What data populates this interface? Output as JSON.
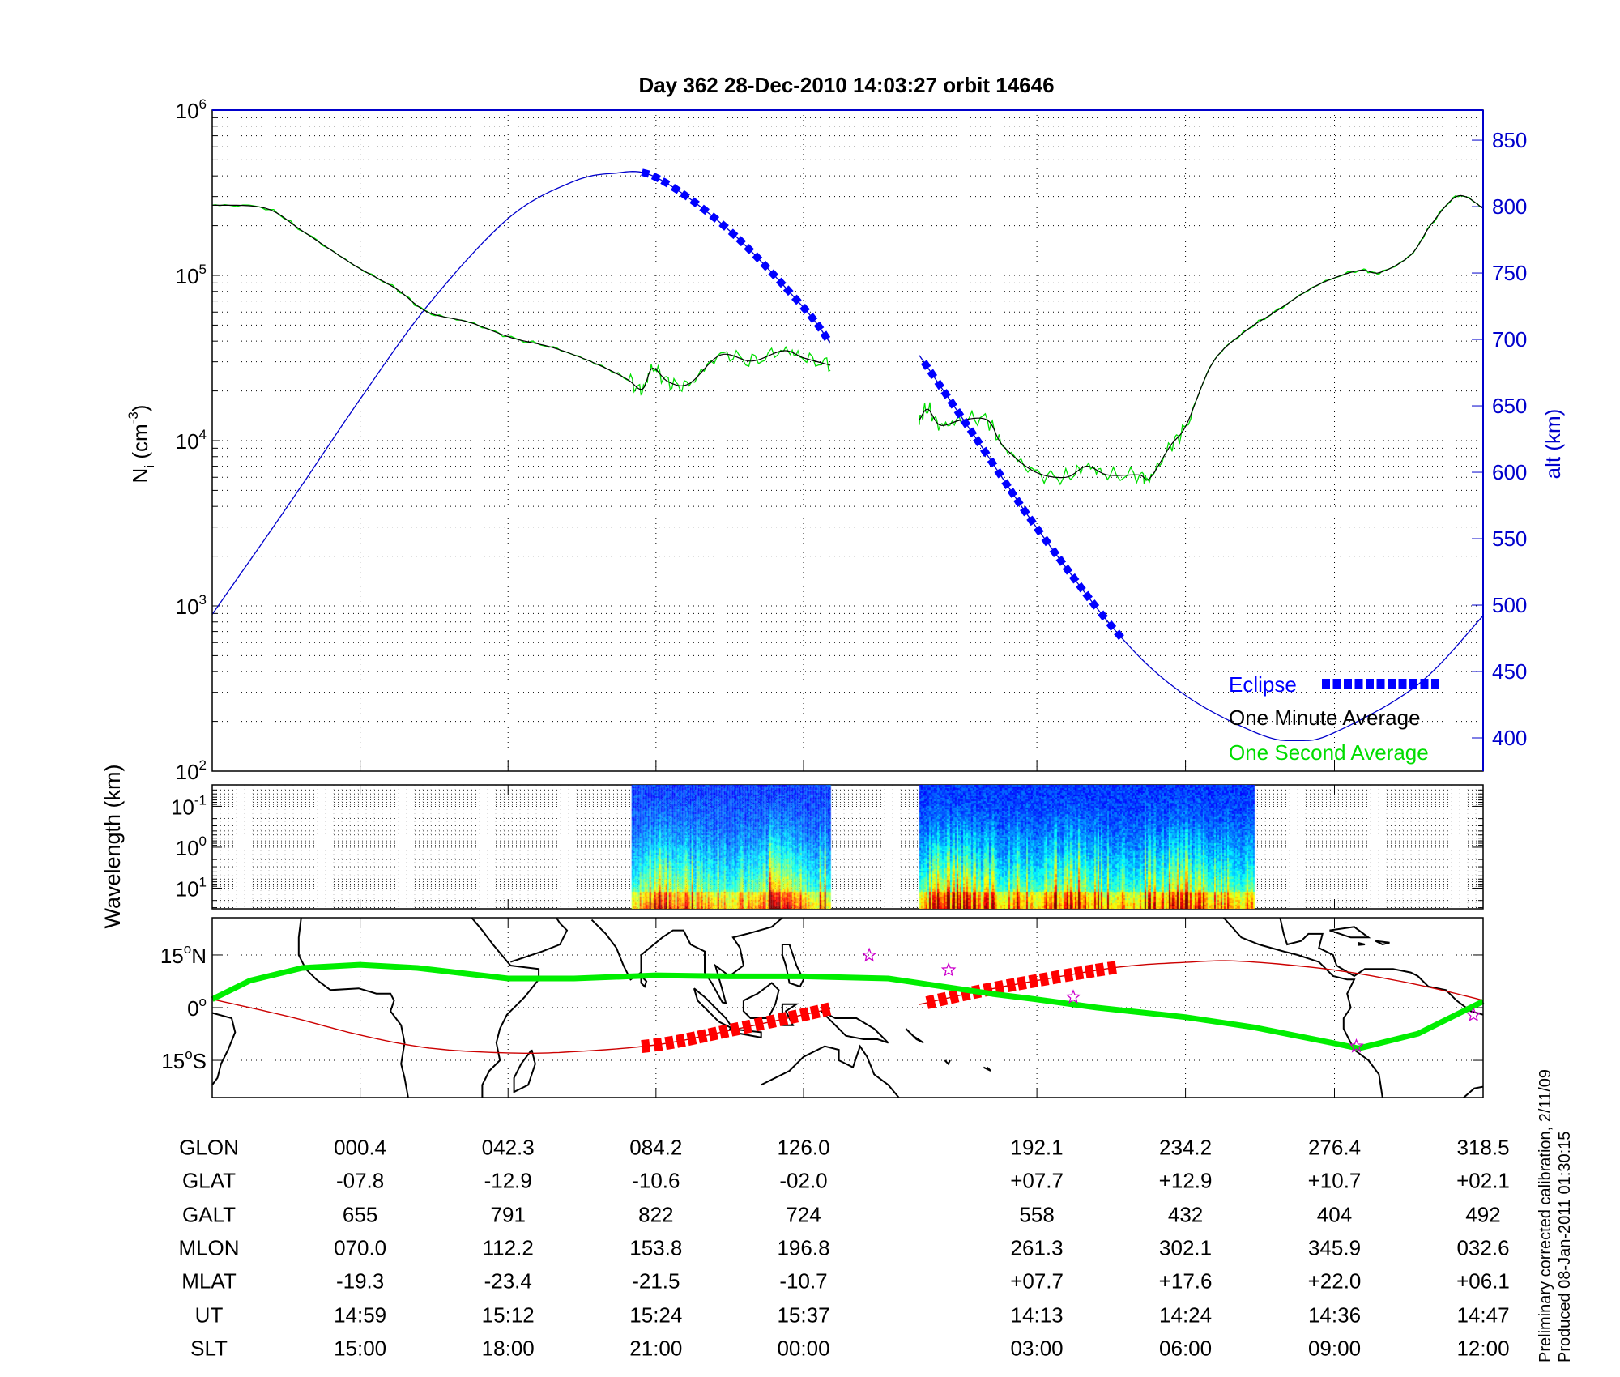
{
  "title": "Day 362  28-Dec-2010 14:03:27   orbit 14646",
  "side_note": {
    "line1": "Preliminary corrected calibration, 2/11/09",
    "line2": "Produced 08-Jan-2011 01:30:15"
  },
  "colors": {
    "altitude": "#0000cc",
    "eclipse": "#0000ff",
    "one_minute": "#000000",
    "one_second": "#00dd00",
    "ground_track": "#cc0000",
    "eclipse_track": "#ff0000",
    "dip_equator": "#00ee00",
    "stars": "#cc00cc"
  },
  "chart_data": [
    {
      "type": "line",
      "panel": "density",
      "ylabel": "N_i (cm^-3)",
      "ylabel_main": "N",
      "ylabel_sub": "i",
      "ylabel_unit": " (cm",
      "ylabel_exp": "-3",
      "ylabel_close": ")",
      "yscale": "log",
      "ylim": [
        100,
        1000000
      ],
      "y_ticks": [
        {
          "base": "10",
          "exp": "2",
          "value": 100
        },
        {
          "base": "10",
          "exp": "3",
          "value": 1000
        },
        {
          "base": "10",
          "exp": "4",
          "value": 10000
        },
        {
          "base": "10",
          "exp": "5",
          "value": 100000
        },
        {
          "base": "10",
          "exp": "6",
          "value": 1000000
        }
      ],
      "y2label": "alt (km)",
      "y2lim": [
        375,
        872.6
      ],
      "y2_ticks": [
        "400",
        "450",
        "500",
        "550",
        "600",
        "650",
        "700",
        "750",
        "800",
        "850"
      ],
      "xlim_glon": [
        -41.5,
        318.5
      ],
      "x_ticks_glon": [
        0.4,
        42.3,
        84.2,
        126.0,
        192.1,
        234.2,
        276.4,
        318.5
      ],
      "grid": true,
      "legend_placement": "bottom-right",
      "legend": {
        "eclipse": "Eclipse",
        "one_minute": "One Minute Average",
        "one_second": "One Second Average"
      },
      "series": [
        {
          "name": "One Minute Average",
          "segments": [
            [
              [
                -41.5,
                266000
              ],
              [
                -26.4,
                255000
              ],
              [
                -16.0,
                186000
              ],
              [
                -1.2,
                115000
              ],
              [
                10.6,
                83000
              ],
              [
                19.5,
                60000
              ],
              [
                31.4,
                52000
              ],
              [
                43.2,
                42000
              ],
              [
                55.1,
                36500
              ],
              [
                66.9,
                29400
              ],
              [
                75.8,
                23700
              ],
              [
                80.3,
                20500
              ],
              [
                83.2,
                27400
              ],
              [
                87.7,
                22700
              ],
              [
                93.6,
                22100
              ],
              [
                102.5,
                33000
              ],
              [
                111.4,
                30300
              ],
              [
                120.3,
                35000
              ],
              [
                126.2,
                31600
              ],
              [
                133.6,
                28600
              ]
            ],
            [
              [
                158.8,
                13300
              ],
              [
                161.2,
                15500
              ],
              [
                164.7,
                12400
              ],
              [
                170.7,
                13300
              ],
              [
                178.1,
                13300
              ],
              [
                182.5,
                9300
              ],
              [
                191.4,
                6500
              ],
              [
                200.3,
                6000
              ],
              [
                206.2,
                7000
              ],
              [
                212.1,
                6200
              ],
              [
                221.0,
                6200
              ],
              [
                224.0,
                5900
              ],
              [
                229.9,
                9300
              ],
              [
                234.4,
                12400
              ],
              [
                241.8,
                29400
              ],
              [
                250.6,
                45000
              ],
              [
                259.5,
                60000
              ],
              [
                271.4,
                87000
              ],
              [
                283.2,
                107000
              ],
              [
                289.2,
                104000
              ],
              [
                298.0,
                133000
              ],
              [
                303.9,
                205000
              ],
              [
                311.4,
                303000
              ],
              [
                318.5,
                255000
              ]
            ]
          ]
        },
        {
          "name": "One Second Average",
          "segments": "one-minute average with 1 s fluctuations"
        },
        {
          "name": "alt (km)",
          "axis": "right",
          "segments": [
            [
              [
                -41.5,
                493
              ],
              [
                -20,
                575
              ],
              [
                0.4,
                655
              ],
              [
                20,
                727
              ],
              [
                42.3,
                791
              ],
              [
                60,
                818
              ],
              [
                72,
                825
              ],
              [
                84.2,
                822
              ],
              [
                105,
                782
              ],
              [
                126,
                724
              ],
              [
                133.6,
                697
              ]
            ],
            [
              [
                158.8,
                688
              ],
              [
                175,
                625
              ],
              [
                192.1,
                558
              ],
              [
                215.9,
                476
              ],
              [
                234.2,
                432
              ],
              [
                255,
                403
              ],
              [
                266,
                398
              ],
              [
                276.4,
                404
              ],
              [
                300,
                440
              ],
              [
                318.5,
                492
              ]
            ]
          ]
        }
      ],
      "eclipse_glon_ranges": [
        [
          77.9,
          134.2
        ],
        [
          158.8,
          215.9
        ]
      ]
    },
    {
      "type": "heatmap",
      "panel": "spectrogram",
      "ylabel": "Wavelength (km)",
      "yscale": "log",
      "ylim": [
        0.03,
        32
      ],
      "y_ticks": [
        {
          "base": "10",
          "exp": "-1"
        },
        {
          "base": "10",
          "exp": "0"
        },
        {
          "base": "10",
          "exp": "1"
        }
      ],
      "data_glon_ranges": [
        [
          77.3,
          133.6
        ],
        [
          158.8,
          253.6
        ]
      ],
      "colormap": "jet"
    },
    {
      "type": "map",
      "panel": "ground-track",
      "ylim": [
        -25.6,
        25.6
      ],
      "y_ticks": [
        {
          "label": "15°N",
          "deg": "15",
          "hemi": "N",
          "value": 15
        },
        {
          "label": "0°",
          "deg": "0",
          "hemi": "",
          "value": 0
        },
        {
          "label": "15°S",
          "deg": "15",
          "hemi": "S",
          "value": -15
        }
      ],
      "ground_track": [
        [
          [
            -41.5,
            2.4
          ],
          [
            -20,
            -2.5
          ],
          [
            0.4,
            -7.8
          ],
          [
            20,
            -11.5
          ],
          [
            42.3,
            -12.9
          ],
          [
            60,
            -12.6
          ],
          [
            84.2,
            -10.6
          ],
          [
            105,
            -6.5
          ],
          [
            126,
            -2.0
          ],
          [
            133.6,
            -0.3
          ]
        ],
        [
          [
            158.8,
            0.9
          ],
          [
            175,
            4.5
          ],
          [
            192.1,
            7.7
          ],
          [
            215,
            11.5
          ],
          [
            234.2,
            12.9
          ],
          [
            250,
            13.2
          ],
          [
            276.4,
            10.7
          ],
          [
            300,
            6.5
          ],
          [
            318.5,
            2.1
          ]
        ]
      ],
      "dip_equator": [
        [
          -41.5,
          2.4
        ],
        [
          -30.8,
          7.7
        ],
        [
          -16,
          11.3
        ],
        [
          0.3,
          12.2
        ],
        [
          16.6,
          11.3
        ],
        [
          42.3,
          8.3
        ],
        [
          61,
          8.3
        ],
        [
          84.2,
          9.2
        ],
        [
          105.5,
          8.9
        ],
        [
          126,
          8.9
        ],
        [
          150,
          8.3
        ],
        [
          179.6,
          3.9
        ],
        [
          191.7,
          2.4
        ],
        [
          209.2,
          0
        ],
        [
          234.1,
          -2.7
        ],
        [
          253.6,
          -5.6
        ],
        [
          276.1,
          -10.1
        ],
        [
          283.2,
          -11.6
        ],
        [
          300.1,
          -7.4
        ],
        [
          318.5,
          1.8
        ]
      ],
      "stars": [
        [
          144.6,
          14.9
        ],
        [
          167.1,
          10.7
        ],
        [
          202.4,
          3.0
        ],
        [
          282.6,
          -11.0
        ],
        [
          315.8,
          -2.1
        ]
      ]
    }
  ],
  "table": {
    "rows": [
      {
        "label": "GLON",
        "values": [
          "000.4",
          "042.3",
          "084.2",
          "126.0",
          "192.1",
          "234.2",
          "276.4",
          "318.5"
        ]
      },
      {
        "label": "GLAT",
        "values": [
          "-07.8",
          "-12.9",
          "-10.6",
          "-02.0",
          "+07.7",
          "+12.9",
          "+10.7",
          "+02.1"
        ]
      },
      {
        "label": "GALT",
        "values": [
          "655",
          "791",
          "822",
          "724",
          "558",
          "432",
          "404",
          "492"
        ]
      },
      {
        "label": "MLON",
        "values": [
          "070.0",
          "112.2",
          "153.8",
          "196.8",
          "261.3",
          "302.1",
          "345.9",
          "032.6"
        ]
      },
      {
        "label": "MLAT",
        "values": [
          "-19.3",
          "-23.4",
          "-21.5",
          "-10.7",
          "+07.7",
          "+17.6",
          "+22.0",
          "+06.1"
        ]
      },
      {
        "label": "UT",
        "values": [
          "14:59",
          "15:12",
          "15:24",
          "15:37",
          "14:13",
          "14:24",
          "14:36",
          "14:47"
        ]
      },
      {
        "label": "SLT",
        "values": [
          "15:00",
          "18:00",
          "21:00",
          "00:00",
          "03:00",
          "06:00",
          "09:00",
          "12:00"
        ]
      }
    ]
  }
}
